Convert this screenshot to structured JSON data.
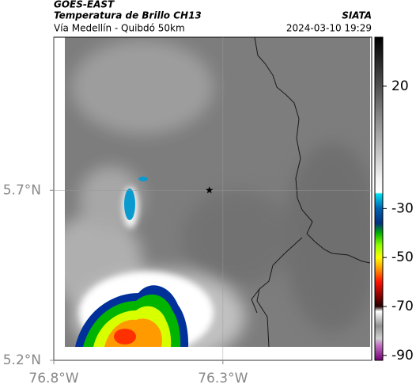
{
  "chart_data": {
    "type": "map",
    "title": "GOES-EAST",
    "subtitle": "Temperatura de Brillo CH13",
    "source": "SIATA",
    "region": "Vía Medellín - Quibdó 50km",
    "timestamp": "2024-03-10 19:29",
    "xlim": [
      -76.8,
      -75.86
    ],
    "ylim": [
      5.2,
      6.15
    ],
    "xticks": [
      {
        "value": -76.8,
        "label": "76.8°W"
      },
      {
        "value": -76.3,
        "label": "76.3°W"
      }
    ],
    "yticks": [
      {
        "value": 5.2,
        "label": "5.2°N"
      },
      {
        "value": 5.7,
        "label": "5.7°N"
      }
    ],
    "grid": true,
    "marker": {
      "lon": -76.34,
      "lat": 5.7
    },
    "clim": [
      -92,
      40
    ],
    "cticks": [
      20,
      -30,
      -50,
      -70,
      -90
    ],
    "colormap": [
      {
        "value": 40,
        "color": "#000000"
      },
      {
        "value": 20,
        "color": "#505050"
      },
      {
        "value": -18,
        "color": "#f4f4f4"
      },
      {
        "value": -23.5,
        "color": "#ffffff"
      },
      {
        "value": -24,
        "color": "#00e0f0"
      },
      {
        "value": -30,
        "color": "#0060b0"
      },
      {
        "value": -36,
        "color": "#003080"
      },
      {
        "value": -40,
        "color": "#00b000"
      },
      {
        "value": -45,
        "color": "#90ff00"
      },
      {
        "value": -50,
        "color": "#ffff00"
      },
      {
        "value": -55,
        "color": "#ff9000"
      },
      {
        "value": -60,
        "color": "#ff1000"
      },
      {
        "value": -66,
        "color": "#800000"
      },
      {
        "value": -70,
        "color": "#200000"
      },
      {
        "value": -72,
        "color": "#ffffff"
      },
      {
        "value": -78,
        "color": "#909090"
      },
      {
        "value": -83,
        "color": "#d0d0d0"
      },
      {
        "value": -86,
        "color": "#c070c0"
      },
      {
        "value": -92,
        "color": "#700070"
      }
    ]
  }
}
